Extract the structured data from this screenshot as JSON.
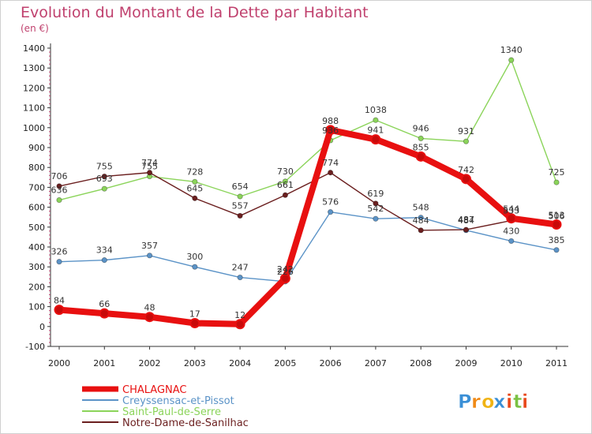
{
  "chart_data": {
    "type": "line",
    "title": "Evolution du Montant de la Dette par Habitant",
    "subtitle": "(en €)",
    "categories": [
      "2000",
      "2001",
      "2002",
      "2003",
      "2004",
      "2005",
      "2006",
      "2007",
      "2008",
      "2009",
      "2010",
      "2011"
    ],
    "ylim": [
      -100,
      1400
    ],
    "yticks": [
      -100,
      0,
      100,
      200,
      300,
      400,
      500,
      600,
      700,
      800,
      900,
      1000,
      1100,
      1200,
      1300,
      1400
    ],
    "grid": false,
    "legend_position": "bottom-left",
    "series": [
      {
        "name": "CHALAGNAC",
        "color": "#e81010",
        "values": [
          84,
          66,
          48,
          17,
          12,
          242,
          988,
          941,
          855,
          742,
          544,
          513
        ]
      },
      {
        "name": "Creyssensac-et-Pissot",
        "color": "#5b93c7",
        "values": [
          326,
          334,
          357,
          300,
          247,
          226,
          576,
          542,
          548,
          484,
          430,
          385
        ]
      },
      {
        "name": "Saint-Paul-de-Serre",
        "color": "#8bd45a",
        "values": [
          636,
          693,
          755,
          728,
          654,
          730,
          936,
          1038,
          946,
          931,
          1340,
          725
        ]
      },
      {
        "name": "Notre-Dame-de-Sanilhac",
        "color": "#6b1f1f",
        "values": [
          706,
          755,
          774,
          645,
          557,
          661,
          774,
          619,
          484,
          487,
          533,
          506
        ]
      }
    ]
  },
  "branding": {
    "logo_text": "Proxiti"
  }
}
